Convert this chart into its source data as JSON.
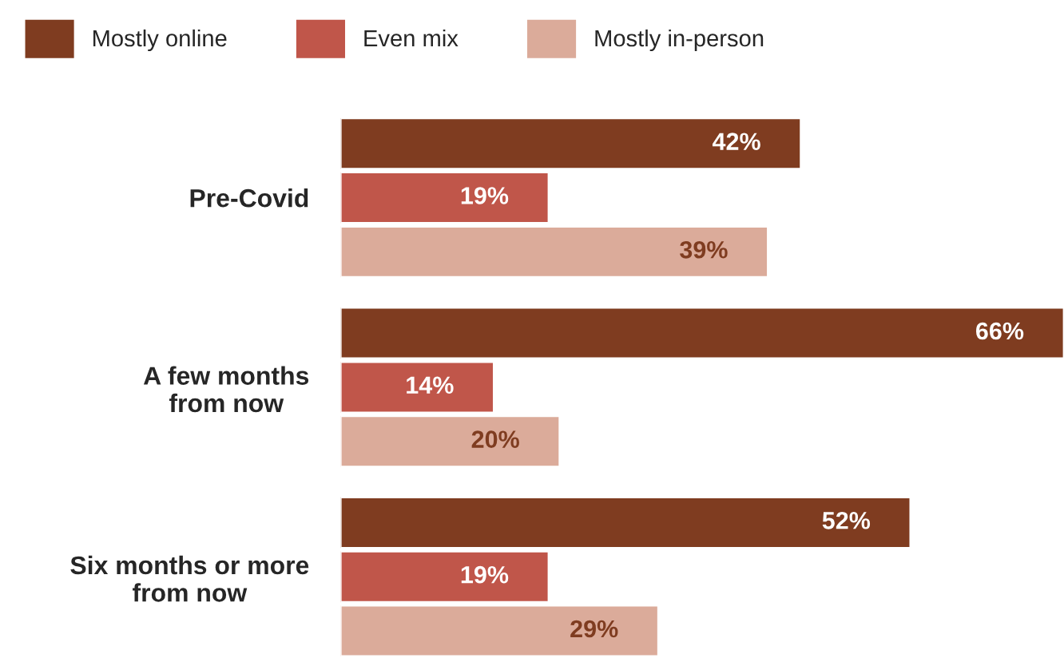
{
  "chart_data": {
    "type": "bar",
    "orientation": "horizontal",
    "categories": [
      "Pre-Covid",
      "A few months\nfrom now",
      "Six months or more\nfrom now"
    ],
    "series": [
      {
        "name": "Mostly online",
        "color": "#7f3c20",
        "values": [
          42,
          66,
          52
        ],
        "value_labels": [
          "42%",
          "66%",
          "52%"
        ]
      },
      {
        "name": "Even mix",
        "color": "#c0564a",
        "values": [
          19,
          14,
          19
        ],
        "value_labels": [
          "19%",
          "14%",
          "19%"
        ]
      },
      {
        "name": "Mostly in-person",
        "color": "#dbab9a",
        "values": [
          39,
          20,
          29
        ],
        "value_labels": [
          "39%",
          "20%",
          "29%"
        ]
      }
    ],
    "legend": "top"
  }
}
